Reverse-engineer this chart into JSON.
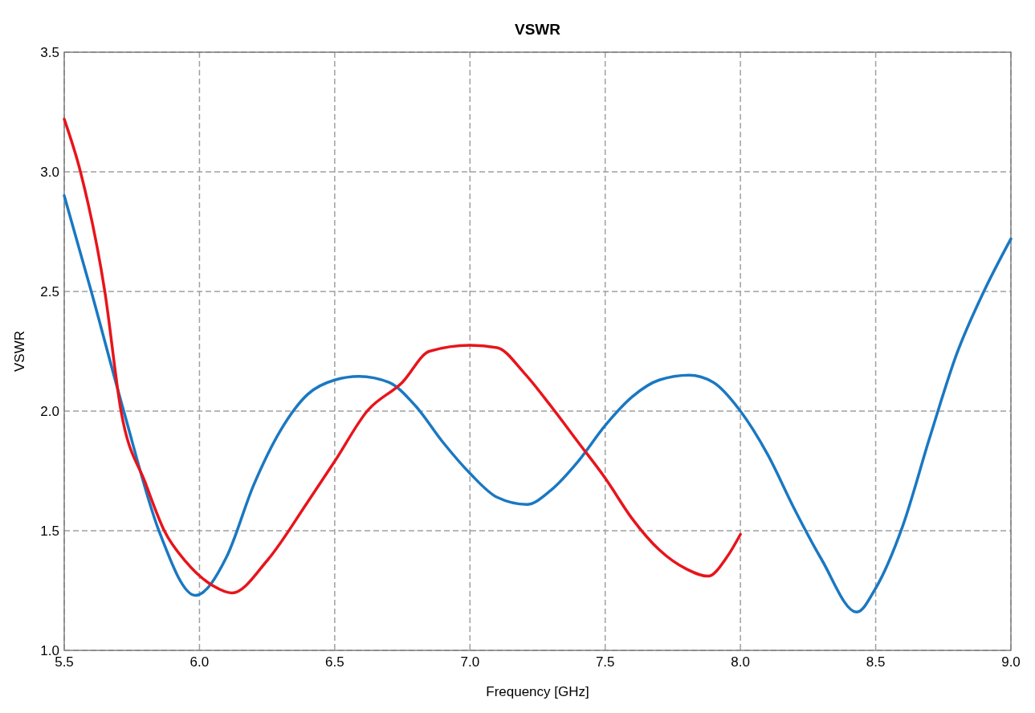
{
  "chart_data": {
    "type": "line",
    "title": "VSWR",
    "xlabel": "Frequency [GHz]",
    "ylabel": "VSWR",
    "xlim": [
      5.5,
      9.0
    ],
    "ylim": [
      1.0,
      3.5
    ],
    "xticks": [
      {
        "value": 5.5,
        "label": "5.5"
      },
      {
        "value": 6.0,
        "label": "6.0"
      },
      {
        "value": 6.5,
        "label": "6.5"
      },
      {
        "value": 7.0,
        "label": "7.0"
      },
      {
        "value": 7.5,
        "label": "7.5"
      },
      {
        "value": 8.0,
        "label": "8.0"
      },
      {
        "value": 8.5,
        "label": "8.5"
      },
      {
        "value": 9.0,
        "label": "9.0"
      }
    ],
    "yticks": [
      {
        "value": 1.0,
        "label": "1.0"
      },
      {
        "value": 1.5,
        "label": "1.5"
      },
      {
        "value": 2.0,
        "label": "2.0"
      },
      {
        "value": 2.5,
        "label": "2.5"
      },
      {
        "value": 3.0,
        "label": "3.0"
      },
      {
        "value": 3.5,
        "label": "3.5"
      }
    ],
    "grid": true,
    "marker": "none",
    "line_style": "solid",
    "series": [
      {
        "color": "#1a78c2",
        "x": [
          5.5,
          5.6,
          5.72,
          5.85,
          5.985,
          6.1,
          6.2,
          6.3,
          6.4,
          6.5,
          6.59,
          6.7,
          6.8,
          6.9,
          7.0,
          7.1,
          7.21,
          7.3,
          7.4,
          7.5,
          7.6,
          7.7,
          7.81,
          7.9,
          8.0,
          8.1,
          8.2,
          8.3,
          8.43,
          8.5,
          8.6,
          8.7,
          8.8,
          8.9,
          9.0
        ],
        "values": [
          2.9,
          2.5,
          2.0,
          1.5,
          1.23,
          1.39,
          1.69,
          1.92,
          2.07,
          2.13,
          2.145,
          2.12,
          2.02,
          1.87,
          1.74,
          1.64,
          1.61,
          1.67,
          1.79,
          1.94,
          2.06,
          2.13,
          2.15,
          2.12,
          2.0,
          1.82,
          1.59,
          1.38,
          1.16,
          1.26,
          1.52,
          1.89,
          2.24,
          2.5,
          2.72
        ]
      },
      {
        "color": "#e8141b",
        "x": [
          5.5,
          5.56,
          5.65,
          5.71,
          5.8,
          5.87,
          5.95,
          6.05,
          6.12,
          6.25,
          6.4,
          6.5,
          6.62,
          6.75,
          6.85,
          7.0,
          7.1,
          7.2,
          7.3,
          7.4,
          7.5,
          7.6,
          7.7,
          7.8,
          7.88,
          7.95,
          8.0
        ],
        "values": [
          3.22,
          3.0,
          2.5,
          2.0,
          1.7,
          1.5,
          1.37,
          1.27,
          1.24,
          1.375,
          1.62,
          1.79,
          2.0,
          2.12,
          2.25,
          2.275,
          2.265,
          2.16,
          2.02,
          1.87,
          1.72,
          1.55,
          1.42,
          1.34,
          1.31,
          1.39,
          1.485
        ]
      }
    ]
  }
}
